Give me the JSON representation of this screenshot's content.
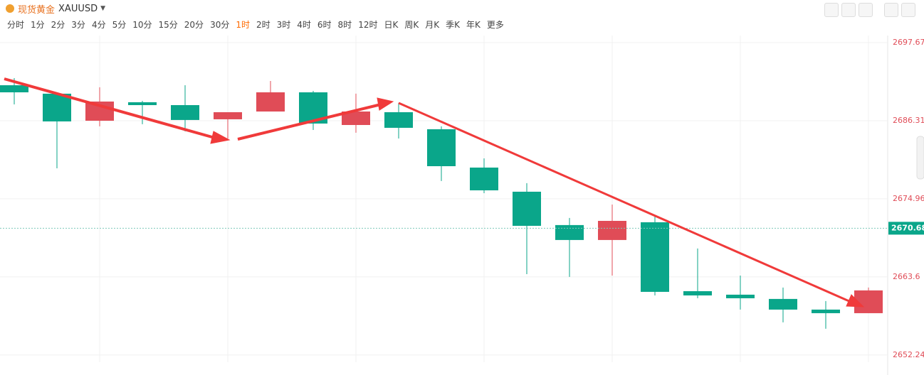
{
  "header": {
    "name": "现货黄金",
    "symbol": "XAUUSD"
  },
  "tabs": [
    "分时",
    "1分",
    "2分",
    "3分",
    "4分",
    "5分",
    "10分",
    "15分",
    "20分",
    "30分",
    "1时",
    "2时",
    "3时",
    "4时",
    "6时",
    "8时",
    "12时",
    "日K",
    "周K",
    "月K",
    "季K",
    "年K",
    "更多"
  ],
  "active_tab": "1时",
  "chart_data": {
    "type": "candlestick",
    "open": [
      2691.47,
      2690.24,
      2686.31,
      2689.0,
      2688.58,
      2686.52,
      2687.65,
      2690.44,
      2685.69,
      2687.55,
      2685.07,
      2679.5,
      2675.99,
      2671.14,
      2668.97,
      2671.55,
      2661.53,
      2661.02,
      2660.4,
      2658.85,
      2658.33
    ],
    "high": [
      2692.51,
      2690.44,
      2691.17,
      2689.2,
      2691.47,
      2687.55,
      2692.09,
      2690.65,
      2690.24,
      2688.89,
      2685.49,
      2680.84,
      2677.23,
      2672.17,
      2674.13,
      2672.58,
      2667.73,
      2663.8,
      2662.05,
      2660.09,
      2662.05
    ],
    "low": [
      2688.69,
      2679.39,
      2685.49,
      2685.8,
      2684.76,
      2683.73,
      2687.65,
      2684.97,
      2684.56,
      2683.73,
      2677.54,
      2675.78,
      2664.01,
      2663.6,
      2663.8,
      2660.91,
      2660.5,
      2658.85,
      2656.99,
      2656.06,
      2658.33
    ],
    "close": [
      2690.44,
      2686.21,
      2689.1,
      2688.58,
      2686.42,
      2687.55,
      2690.44,
      2685.9,
      2687.65,
      2685.28,
      2679.7,
      2676.19,
      2671.03,
      2668.97,
      2671.75,
      2661.43,
      2660.91,
      2660.5,
      2658.85,
      2658.33,
      2661.64
    ],
    "up_color": "#e04c57",
    "down_color": "#0aa68a",
    "ylim": [
      2651.2,
      2698.7
    ],
    "yticks": [
      2652.24,
      2663.6,
      2674.96,
      2686.31,
      2697.67
    ],
    "current_price": 2670.68,
    "grid": true
  }
}
